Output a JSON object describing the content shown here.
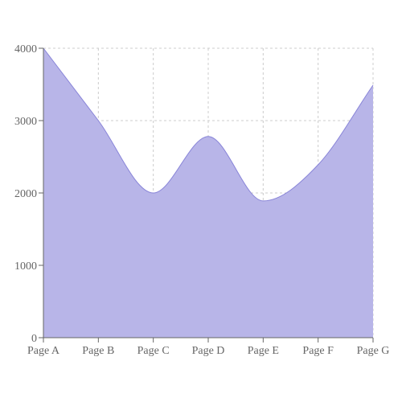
{
  "chart_data": {
    "type": "area",
    "title": "",
    "xlabel": "",
    "ylabel": "",
    "categories": [
      "Page A",
      "Page B",
      "Page C",
      "Page D",
      "Page E",
      "Page F",
      "Page G"
    ],
    "series": [
      {
        "values": [
          4000,
          3000,
          2000,
          2780,
          1890,
          2390,
          3490
        ],
        "fill_color": "#b8b5e8",
        "stroke_color": "#8884d8"
      }
    ],
    "ylim": [
      0,
      4000
    ],
    "y_ticks": [
      "0",
      "1000",
      "2000",
      "3000",
      "4000"
    ],
    "grid": true,
    "grid_style": "dashed",
    "curve": "smooth"
  }
}
